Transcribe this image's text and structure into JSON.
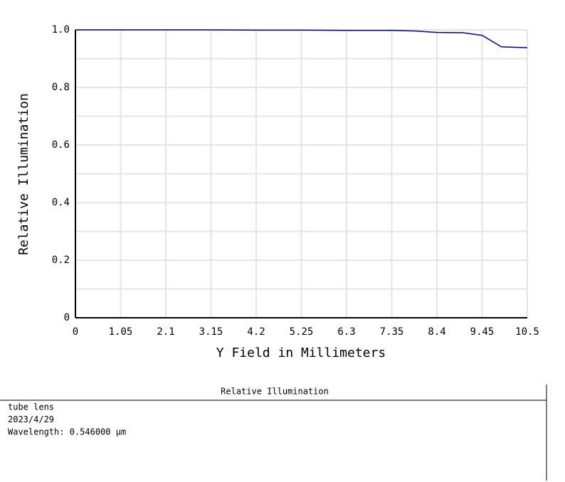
{
  "chart_data": {
    "type": "line",
    "x_label": "Y Field in Millimeters",
    "y_label": "Relative Illumination",
    "x": [
      0,
      1.05,
      2.1,
      3.15,
      4.2,
      5.25,
      6.3,
      7.35,
      7.9,
      8.4,
      9.0,
      9.45,
      9.9,
      10.5
    ],
    "series": [
      {
        "color": "#00008b",
        "values": [
          1,
          1,
          1,
          1,
          0.999,
          0.999,
          0.998,
          0.998,
          0.996,
          0.991,
          0.99,
          0.981,
          0.941,
          0.938
        ]
      }
    ],
    "xlim": [
      0,
      10.5
    ],
    "xticks": [
      0,
      1.05,
      2.1,
      3.15,
      4.2,
      5.25,
      6.3,
      7.35,
      8.4,
      9.45,
      10.5
    ],
    "ylim": [
      0,
      1
    ],
    "yticks": [
      0,
      0.2,
      0.4,
      0.6,
      0.8,
      {
        "value": 1,
        "label": "1.0"
      }
    ],
    "minor_yticks": [
      0.1,
      0.3,
      0.5,
      0.7,
      0.9
    ],
    "grid": true
  },
  "info_box": {
    "title": "Relative Illumination",
    "lines": [
      "tube lens",
      "2023/4/29",
      "Wavelength: 0.546000 µm"
    ]
  }
}
